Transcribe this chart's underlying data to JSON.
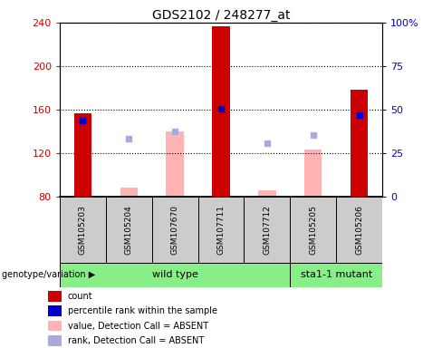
{
  "title": "GDS2102 / 248277_at",
  "samples": [
    "GSM105203",
    "GSM105204",
    "GSM107670",
    "GSM107711",
    "GSM107712",
    "GSM105205",
    "GSM105206"
  ],
  "ylim_left": [
    80,
    240
  ],
  "ylim_right": [
    0,
    100
  ],
  "yticks_left": [
    80,
    120,
    160,
    200,
    240
  ],
  "yticks_right": [
    0,
    25,
    50,
    75,
    100
  ],
  "ytick_labels_right": [
    "0",
    "25",
    "50",
    "75",
    "100%"
  ],
  "red_bars": [
    157,
    null,
    null,
    237,
    null,
    null,
    178
  ],
  "pink_bars_top": [
    null,
    88,
    140,
    null,
    86,
    123,
    null
  ],
  "blue_squares": [
    150,
    null,
    null,
    161,
    null,
    null,
    155
  ],
  "purple_squares": [
    null,
    133,
    140,
    null,
    129,
    137,
    null
  ],
  "wild_type_label": "wild type",
  "mutant_label": "sta1-1 mutant",
  "genotype_label": "genotype/variation",
  "red_color": "#cc0000",
  "pink_color": "#ffb3b3",
  "blue_color": "#0000cc",
  "purple_color": "#aaaadd",
  "bg_sample_row": "#cccccc",
  "bg_green": "#88ee88",
  "left_tick_color": "#cc0000",
  "right_tick_color": "#0000cc"
}
